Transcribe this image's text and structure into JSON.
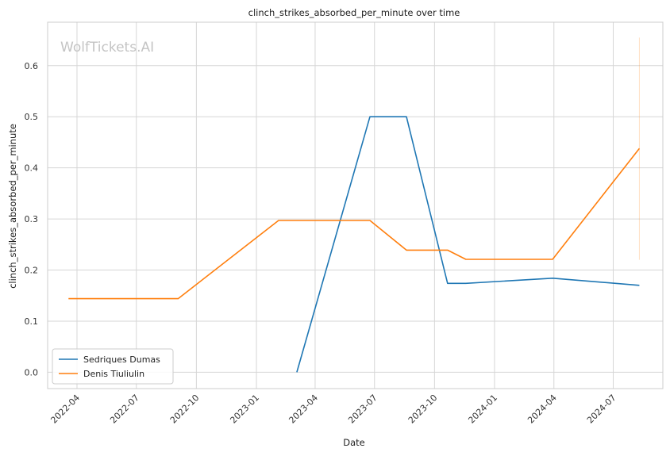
{
  "chart_data": {
    "type": "line",
    "title": "clinch_strikes_absorbed_per_minute over time",
    "xlabel": "Date",
    "ylabel": "clinch_strikes_absorbed_per_minute",
    "watermark": "WolfTickets.AI",
    "x_ticks": [
      "2022-04",
      "2022-07",
      "2022-10",
      "2023-01",
      "2023-04",
      "2023-07",
      "2023-10",
      "2024-01",
      "2024-04",
      "2024-07"
    ],
    "y_ticks": [
      "0.0",
      "0.1",
      "0.2",
      "0.3",
      "0.4",
      "0.5",
      "0.6"
    ],
    "xlim": [
      "2022-02-15",
      "2024-09-15"
    ],
    "ylim": [
      -0.032,
      0.685
    ],
    "grid": true,
    "legend_position": "lower-left",
    "series": [
      {
        "name": "Sedriques Dumas",
        "color": "#1f77b4",
        "points": [
          [
            "2023-03-04",
            0.0
          ],
          [
            "2023-06-24",
            0.5
          ],
          [
            "2023-08-19",
            0.5
          ],
          [
            "2023-10-21",
            0.174
          ],
          [
            "2023-11-18",
            0.174
          ],
          [
            "2024-03-30",
            0.184
          ],
          [
            "2024-08-10",
            0.17
          ]
        ]
      },
      {
        "name": "Denis Tiuliulin",
        "color": "#ff7f0e",
        "points": [
          [
            "2022-03-19",
            0.144
          ],
          [
            "2022-09-03",
            0.144
          ],
          [
            "2023-02-04",
            0.297
          ],
          [
            "2023-06-24",
            0.297
          ],
          [
            "2023-08-19",
            0.239
          ],
          [
            "2023-10-21",
            0.239
          ],
          [
            "2023-11-18",
            0.221
          ],
          [
            "2024-03-30",
            0.221
          ],
          [
            "2024-08-10",
            0.438
          ]
        ]
      }
    ],
    "error_band": {
      "date": "2024-08-10",
      "low": 0.22,
      "high": 0.655,
      "color": "#ff7f0e"
    }
  }
}
